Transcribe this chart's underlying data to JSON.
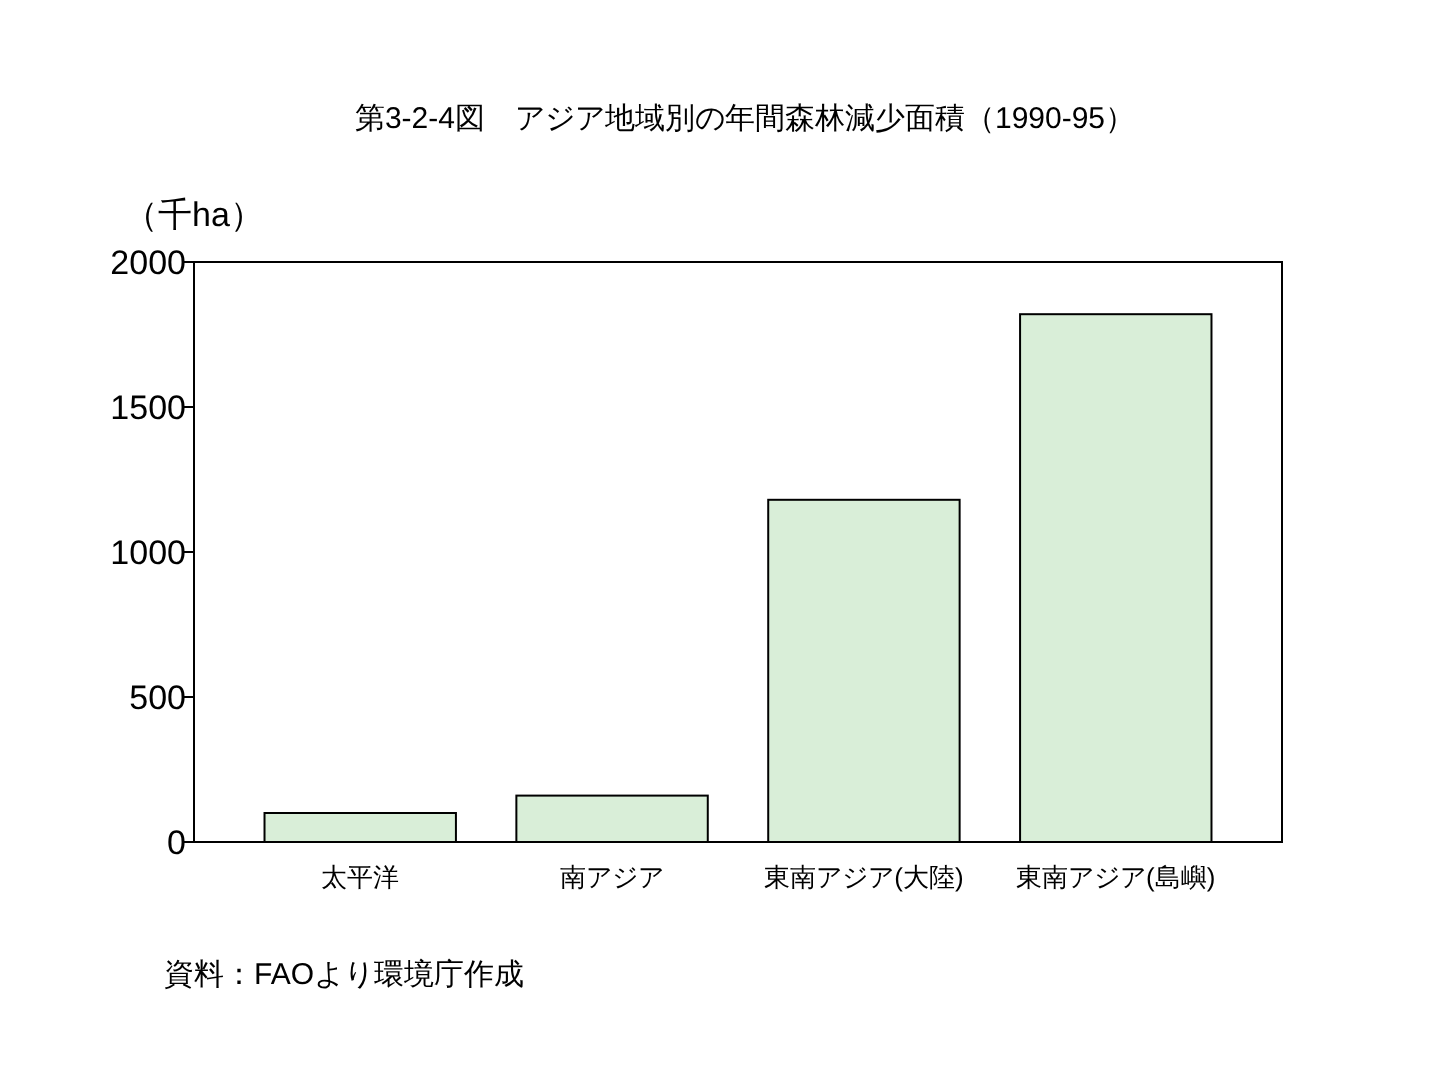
{
  "chart_data": {
    "type": "bar",
    "title": "第3-2-4図　アジア地域別の年間森林減少面積（1990-95）",
    "ylabel": "（千ha）",
    "categories": [
      "太平洋",
      "南アジア",
      "東南アジア(大陸)",
      "東南アジア(島嶼)"
    ],
    "values": [
      100,
      160,
      1180,
      1820
    ],
    "color": "#d9eed8",
    "ylim": [
      0,
      2000
    ],
    "yticks": [
      0,
      500,
      1000,
      1500,
      2000
    ],
    "grid": false,
    "annotations": [
      "資料：FAOより環境庁作成"
    ]
  }
}
